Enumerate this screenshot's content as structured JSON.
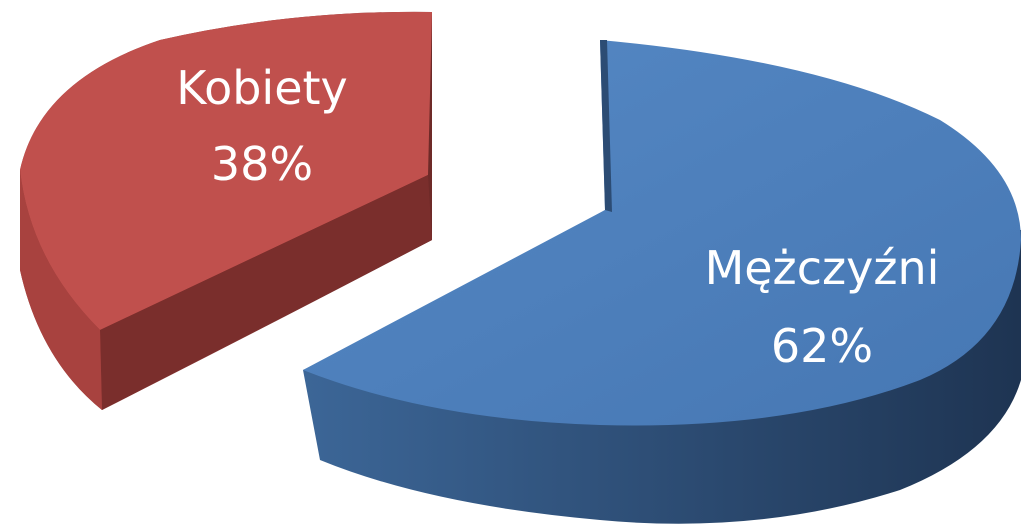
{
  "chart_data": {
    "type": "pie",
    "style": "3d-exploded",
    "slices": [
      {
        "label": "Kobiety",
        "value": 38,
        "value_label": "38%",
        "color": "#C0504D"
      },
      {
        "label": "Mężczyźni",
        "value": 62,
        "value_label": "62%",
        "color": "#4F81BD"
      }
    ],
    "title": "",
    "legend": "none"
  }
}
